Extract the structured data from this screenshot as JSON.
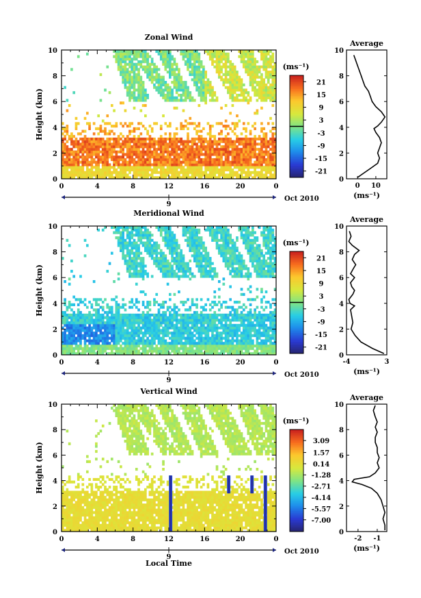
{
  "chart_data": [
    {
      "type": "heatmap",
      "title": "Zonal Wind",
      "ylabel": "Height (km)",
      "ylim": [
        0,
        10
      ],
      "xlim": [
        0,
        24
      ],
      "x_ticks": [
        "0",
        "4",
        "8",
        "12",
        "16",
        "20",
        "0"
      ],
      "y_ticks": [
        "0",
        "2",
        "4",
        "6",
        "8",
        "10"
      ],
      "date_marker": "9",
      "date_label": "Oct 2010",
      "colorbar": {
        "unit": "(ms⁻¹)",
        "vmin": -24,
        "vmax": 24,
        "ticks": [
          "21",
          "15",
          "9",
          "3",
          "-3",
          "-9",
          "-15",
          "-21"
        ]
      },
      "average_profile": {
        "title": "Average",
        "xlabel": "(ms⁻¹)",
        "x_ticks": [
          "0",
          "10"
        ],
        "xlim": [
          -6,
          16
        ],
        "y_ticks": [
          "0",
          "2",
          "4",
          "6",
          "8",
          "10"
        ],
        "height": [
          0.1,
          0.4,
          0.8,
          1.2,
          1.6,
          2.0,
          2.4,
          2.8,
          3.2,
          3.6,
          3.9,
          4.1,
          4.4,
          4.8,
          5.2,
          5.6,
          6.0,
          6.4,
          6.8,
          7.2,
          7.6,
          8.0,
          8.4,
          8.8,
          9.2,
          9.6
        ],
        "values": [
          0,
          3,
          7,
          11,
          12,
          11,
          12,
          13,
          12,
          10,
          9,
          11,
          13,
          15,
          13,
          10,
          8,
          7,
          6,
          4,
          3,
          2,
          1,
          0,
          -1,
          -2
        ]
      }
    },
    {
      "type": "heatmap",
      "title": "Meridional Wind",
      "ylabel": "Height (km)",
      "ylim": [
        0,
        10
      ],
      "xlim": [
        0,
        24
      ],
      "x_ticks": [
        "0",
        "4",
        "8",
        "12",
        "16",
        "20",
        "0"
      ],
      "y_ticks": [
        "0",
        "2",
        "4",
        "6",
        "8",
        "10"
      ],
      "date_marker": "9",
      "date_label": "Oct 2010",
      "colorbar": {
        "unit": "(ms⁻¹)",
        "vmin": -24,
        "vmax": 24,
        "ticks": [
          "21",
          "15",
          "9",
          "3",
          "-3",
          "-9",
          "-15",
          "-21"
        ]
      },
      "average_profile": {
        "title": "Average",
        "xlabel": "(ms⁻¹)",
        "x_ticks": [
          "-4",
          "3"
        ],
        "xlim": [
          -4,
          3
        ],
        "y_ticks": [
          "0",
          "2",
          "4",
          "6",
          "8",
          "10"
        ],
        "height": [
          0.1,
          0.5,
          1.0,
          1.5,
          2.0,
          2.5,
          3.0,
          3.5,
          3.8,
          4.0,
          4.3,
          4.7,
          5.0,
          5.3,
          5.6,
          6.0,
          6.3,
          6.7,
          7.0,
          7.4,
          7.8,
          8.1,
          8.5,
          8.8,
          9.2,
          9.6
        ],
        "values": [
          2.5,
          0.5,
          -1.5,
          -2.5,
          -3.2,
          -2.9,
          -3.1,
          -3.3,
          -2.6,
          -3.4,
          -3.6,
          -2.9,
          -2.6,
          -3.1,
          -3.3,
          -2.6,
          -3.3,
          -2.8,
          -2.4,
          -3.0,
          -2.6,
          -1.8,
          -3.0,
          -3.6,
          -3.2,
          -3.5
        ]
      }
    },
    {
      "type": "heatmap",
      "title": "Vertical Wind",
      "xlabel": "Local Time",
      "ylabel": "Height (km)",
      "ylim": [
        0,
        10
      ],
      "xlim": [
        0,
        24
      ],
      "x_ticks": [
        "0",
        "4",
        "8",
        "12",
        "16",
        "20",
        "0"
      ],
      "y_ticks": [
        "0",
        "2",
        "4",
        "6",
        "8",
        "10"
      ],
      "date_marker": "9",
      "date_label": "Oct 2010",
      "colorbar": {
        "unit": "(ms⁻¹)",
        "vmin": -8.5,
        "vmax": 4.5,
        "ticks": [
          "3.09",
          "1.57",
          "0.14",
          "-1.28",
          "-2.71",
          "-4.14",
          "-5.57",
          "-7.00"
        ]
      },
      "average_profile": {
        "title": "Average",
        "xlabel": "(ms⁻¹)",
        "x_ticks": [
          "-2",
          "-1"
        ],
        "xlim": [
          -2.6,
          -0.5
        ],
        "y_ticks": [
          "0",
          "2",
          "4",
          "6",
          "8",
          "10"
        ],
        "height": [
          0.1,
          0.5,
          1.0,
          1.5,
          2.0,
          2.5,
          3.0,
          3.4,
          3.7,
          3.9,
          4.1,
          4.3,
          4.6,
          5.0,
          5.4,
          5.8,
          6.2,
          6.6,
          7.0,
          7.4,
          7.8,
          8.2,
          8.6,
          9.0,
          9.5,
          9.9
        ],
        "values": [
          -0.6,
          -0.6,
          -0.7,
          -0.6,
          -0.7,
          -0.8,
          -1.0,
          -1.3,
          -1.8,
          -2.3,
          -2.2,
          -1.4,
          -1.1,
          -0.9,
          -1.0,
          -0.9,
          -1.0,
          -1.0,
          -1.1,
          -1.1,
          -1.0,
          -1.1,
          -1.0,
          -1.1,
          -1.2,
          -1.1
        ]
      }
    }
  ]
}
